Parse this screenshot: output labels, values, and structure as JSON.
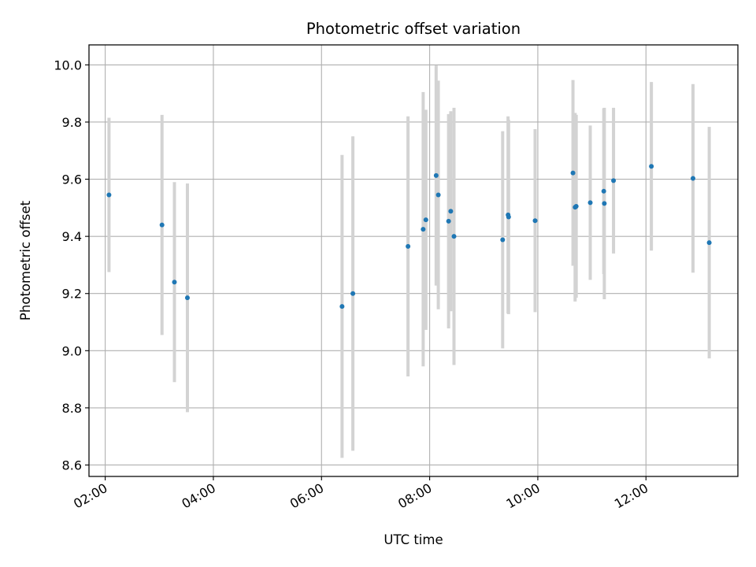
{
  "chart_data": {
    "type": "scatter",
    "title": "Photometric offset variation",
    "xlabel": "UTC time",
    "ylabel": "Photometric offset",
    "xlim": [
      1.7,
      13.7
    ],
    "ylim": [
      8.56,
      10.07
    ],
    "grid": true,
    "x_ticks": [
      {
        "value": 2,
        "label": "02:00"
      },
      {
        "value": 4,
        "label": "04:00"
      },
      {
        "value": 6,
        "label": "06:00"
      },
      {
        "value": 8,
        "label": "08:00"
      },
      {
        "value": 10,
        "label": "10:00"
      },
      {
        "value": 12,
        "label": "12:00"
      }
    ],
    "y_ticks": [
      {
        "value": 8.6,
        "label": "8.6"
      },
      {
        "value": 8.8,
        "label": "8.8"
      },
      {
        "value": 9.0,
        "label": "9.0"
      },
      {
        "value": 9.2,
        "label": "9.2"
      },
      {
        "value": 9.4,
        "label": "9.4"
      },
      {
        "value": 9.6,
        "label": "9.6"
      },
      {
        "value": 9.8,
        "label": "9.8"
      },
      {
        "value": 10.0,
        "label": "10.0"
      }
    ],
    "colors": {
      "point": "#1f77b4",
      "errorbar": "#d3d3d3",
      "grid": "#b0b0b0"
    },
    "series": [
      {
        "name": "offset",
        "points": [
          {
            "x": 2.07,
            "y": 9.545,
            "err": 0.27
          },
          {
            "x": 3.05,
            "y": 9.44,
            "err": 0.385
          },
          {
            "x": 3.28,
            "y": 9.24,
            "err": 0.35
          },
          {
            "x": 3.52,
            "y": 9.185,
            "err": 0.4
          },
          {
            "x": 6.38,
            "y": 9.155,
            "err": 0.53
          },
          {
            "x": 6.58,
            "y": 9.2,
            "err": 0.55
          },
          {
            "x": 7.6,
            "y": 9.365,
            "err": 0.455
          },
          {
            "x": 7.88,
            "y": 9.425,
            "err": 0.48
          },
          {
            "x": 7.93,
            "y": 9.458,
            "err": 0.385
          },
          {
            "x": 8.12,
            "y": 9.613,
            "err": 0.385
          },
          {
            "x": 8.16,
            "y": 9.545,
            "err": 0.4
          },
          {
            "x": 8.35,
            "y": 9.453,
            "err": 0.375
          },
          {
            "x": 8.39,
            "y": 9.488,
            "err": 0.35
          },
          {
            "x": 8.45,
            "y": 9.4,
            "err": 0.45
          },
          {
            "x": 9.35,
            "y": 9.388,
            "err": 0.38
          },
          {
            "x": 9.45,
            "y": 9.475,
            "err": 0.345
          },
          {
            "x": 9.46,
            "y": 9.468,
            "err": 0.34
          },
          {
            "x": 9.95,
            "y": 9.455,
            "err": 0.32
          },
          {
            "x": 10.65,
            "y": 9.622,
            "err": 0.325
          },
          {
            "x": 10.69,
            "y": 9.502,
            "err": 0.33
          },
          {
            "x": 10.71,
            "y": 9.505,
            "err": 0.32
          },
          {
            "x": 10.97,
            "y": 9.518,
            "err": 0.27
          },
          {
            "x": 11.22,
            "y": 9.558,
            "err": 0.29
          },
          {
            "x": 11.23,
            "y": 9.515,
            "err": 0.335
          },
          {
            "x": 11.4,
            "y": 9.595,
            "err": 0.255
          },
          {
            "x": 12.1,
            "y": 9.645,
            "err": 0.295
          },
          {
            "x": 12.87,
            "y": 9.603,
            "err": 0.33
          },
          {
            "x": 13.17,
            "y": 9.378,
            "err": 0.405
          }
        ]
      }
    ]
  }
}
